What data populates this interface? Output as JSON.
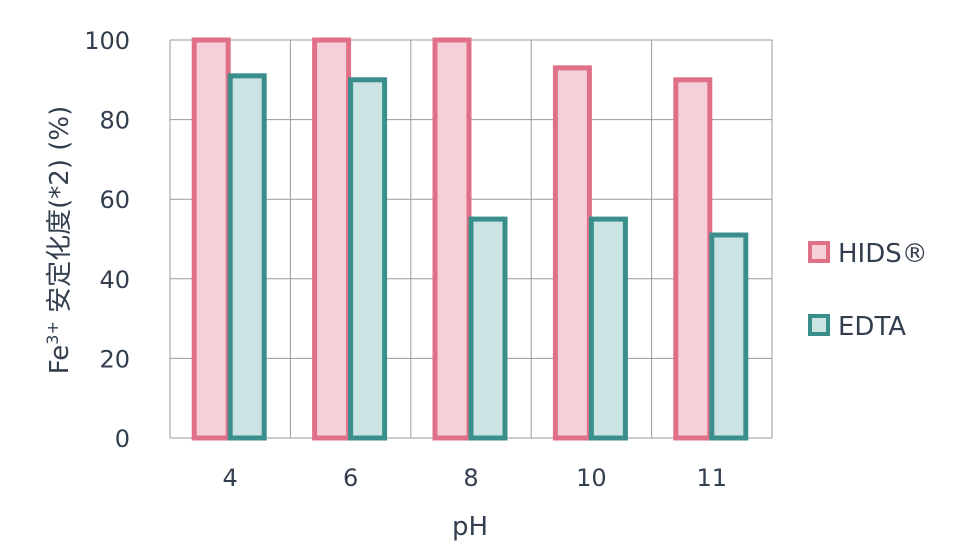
{
  "chart_data": {
    "type": "bar",
    "categories": [
      "4",
      "6",
      "8",
      "10",
      "11"
    ],
    "series": [
      {
        "name": "HIDS®",
        "values": [
          100,
          100,
          100,
          93,
          90
        ],
        "fill": "#f5d0d9",
        "stroke": "#e07088"
      },
      {
        "name": "EDTA",
        "values": [
          91,
          90,
          55,
          55,
          51
        ],
        "fill": "#cbe4e3",
        "stroke": "#3a8f8c"
      }
    ],
    "xlabel": "pH",
    "ylabel_main": "Fe",
    "ylabel_sup": "3+",
    "ylabel_rest": " 安定化度(*2) (%)",
    "ylim": [
      0,
      100
    ],
    "yticks": [
      "0",
      "20",
      "40",
      "60",
      "80",
      "100"
    ],
    "grid": true,
    "legend_position": "right"
  }
}
